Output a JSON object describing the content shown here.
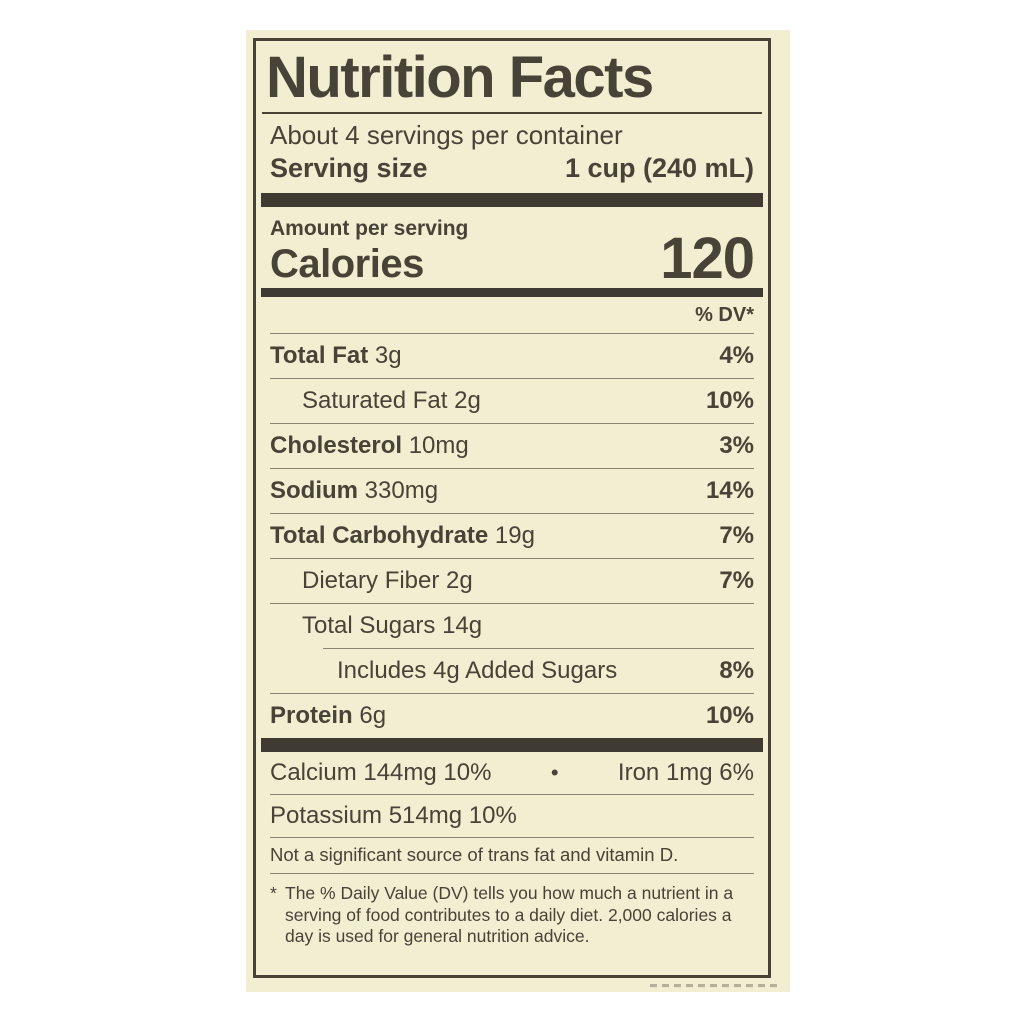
{
  "colors": {
    "cream": "#f2eed1",
    "ink": "#474337",
    "bar": "#3f3b33",
    "hairline": "#8a8374",
    "page_bg": "#ffffff"
  },
  "label": {
    "title": "Nutrition Facts",
    "servings_per_container": "About 4 servings per container",
    "serving_size_label": "Serving size",
    "serving_size_value": "1 cup (240 mL)",
    "amount_per_serving": "Amount per serving",
    "calories_label": "Calories",
    "calories_value": "120",
    "dv_header": "% DV*",
    "rows": [
      {
        "label": "Total Fat",
        "amount": "3g",
        "dv": "4%",
        "bold": true,
        "indent": 0
      },
      {
        "label": "Saturated Fat",
        "amount": "2g",
        "dv": "10%",
        "bold": false,
        "indent": 1
      },
      {
        "label": "Cholesterol",
        "amount": "10mg",
        "dv": "3%",
        "bold": true,
        "indent": 0
      },
      {
        "label": "Sodium",
        "amount": "330mg",
        "dv": "14%",
        "bold": true,
        "indent": 0
      },
      {
        "label": "Total Carbohydrate",
        "amount": "19g",
        "dv": "7%",
        "bold": true,
        "indent": 0
      },
      {
        "label": "Dietary Fiber",
        "amount": "2g",
        "dv": "7%",
        "bold": false,
        "indent": 1
      },
      {
        "label": "Total Sugars",
        "amount": "14g",
        "dv": "",
        "bold": false,
        "indent": 1
      },
      {
        "label": "Includes 4g Added Sugars",
        "amount": "",
        "dv": "8%",
        "bold": false,
        "indent": 2,
        "partial_rule": true
      },
      {
        "label": "Protein",
        "amount": "6g",
        "dv": "10%",
        "bold": true,
        "indent": 0
      }
    ],
    "minerals": [
      {
        "left": "Calcium 144mg 10%",
        "bullet": "•",
        "right": "Iron 1mg 6%"
      },
      {
        "left": "Potassium 514mg 10%",
        "bullet": "",
        "right": ""
      }
    ],
    "not_significant": "Not a significant source of trans fat and vitamin D.",
    "footnote_marker": "*",
    "footnote": "The % Daily Value (DV) tells you how much a nutrient in a serving of food contributes to a daily diet. 2,000 calories a day is used for general nutrition advice."
  }
}
